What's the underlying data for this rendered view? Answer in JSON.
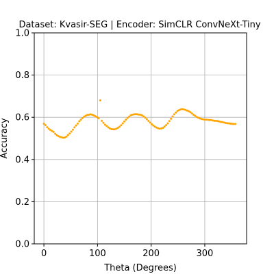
{
  "chart_data": {
    "type": "scatter",
    "title": "Dataset: Kvasir-SEG | Encoder: SimCLR ConvNeXt-Tiny",
    "xlabel": "Theta (Degrees)",
    "ylabel": "Accuracy",
    "xlim": [
      -18,
      378
    ],
    "ylim": [
      0.0,
      1.0
    ],
    "xticks": [
      0,
      100,
      200,
      300
    ],
    "xtick_labels": [
      "0",
      "100",
      "200",
      "300"
    ],
    "yticks": [
      0.0,
      0.2,
      0.4,
      0.6,
      0.8,
      1.0
    ],
    "ytick_labels": [
      "0.0",
      "0.2",
      "0.4",
      "0.6",
      "0.8",
      "1.0"
    ],
    "grid": true,
    "marker_color": "#ffa500",
    "series": [
      {
        "x": [
          0,
          3,
          6,
          9,
          12,
          15,
          18,
          21,
          24,
          27,
          30,
          33,
          36,
          39,
          42,
          45,
          48,
          51,
          54,
          57,
          60,
          63,
          66,
          69,
          72,
          75,
          78,
          81,
          84,
          87,
          90,
          93,
          96,
          99,
          102,
          105,
          108,
          111,
          114,
          117,
          120,
          123,
          126,
          129,
          132,
          135,
          138,
          141,
          144,
          147,
          150,
          153,
          156,
          159,
          162,
          165,
          168,
          171,
          174,
          177,
          180,
          183,
          186,
          189,
          192,
          195,
          198,
          201,
          204,
          207,
          210,
          213,
          216,
          219,
          222,
          225,
          228,
          231,
          234,
          237,
          240,
          243,
          246,
          249,
          252,
          255,
          258,
          261,
          264,
          267,
          270,
          273,
          276,
          279,
          282,
          285,
          288,
          291,
          294,
          297,
          300,
          303,
          306,
          309,
          312,
          315,
          318,
          321,
          324,
          327,
          330,
          333,
          336,
          339,
          342,
          345,
          348,
          351,
          354,
          357
        ],
        "y": [
          0.569,
          0.563,
          0.553,
          0.546,
          0.54,
          0.535,
          0.531,
          0.522,
          0.515,
          0.511,
          0.507,
          0.505,
          0.503,
          0.504,
          0.508,
          0.515,
          0.523,
          0.532,
          0.541,
          0.552,
          0.561,
          0.57,
          0.581,
          0.589,
          0.596,
          0.603,
          0.607,
          0.611,
          0.612,
          0.614,
          0.612,
          0.609,
          0.605,
          0.601,
          0.595,
          0.68,
          0.583,
          0.574,
          0.565,
          0.559,
          0.552,
          0.547,
          0.544,
          0.543,
          0.543,
          0.546,
          0.55,
          0.555,
          0.562,
          0.571,
          0.58,
          0.589,
          0.597,
          0.603,
          0.609,
          0.612,
          0.614,
          0.615,
          0.614,
          0.613,
          0.612,
          0.609,
          0.604,
          0.598,
          0.591,
          0.583,
          0.575,
          0.567,
          0.561,
          0.555,
          0.551,
          0.548,
          0.546,
          0.547,
          0.55,
          0.556,
          0.563,
          0.571,
          0.582,
          0.593,
          0.604,
          0.614,
          0.622,
          0.629,
          0.634,
          0.637,
          0.638,
          0.637,
          0.635,
          0.632,
          0.629,
          0.624,
          0.618,
          0.612,
          0.607,
          0.602,
          0.598,
          0.594,
          0.592,
          0.59,
          0.589,
          0.589,
          0.588,
          0.587,
          0.587,
          0.585,
          0.583,
          0.583,
          0.582,
          0.58,
          0.578,
          0.577,
          0.575,
          0.573,
          0.572,
          0.571,
          0.57,
          0.569,
          0.568,
          0.568
        ]
      }
    ]
  }
}
